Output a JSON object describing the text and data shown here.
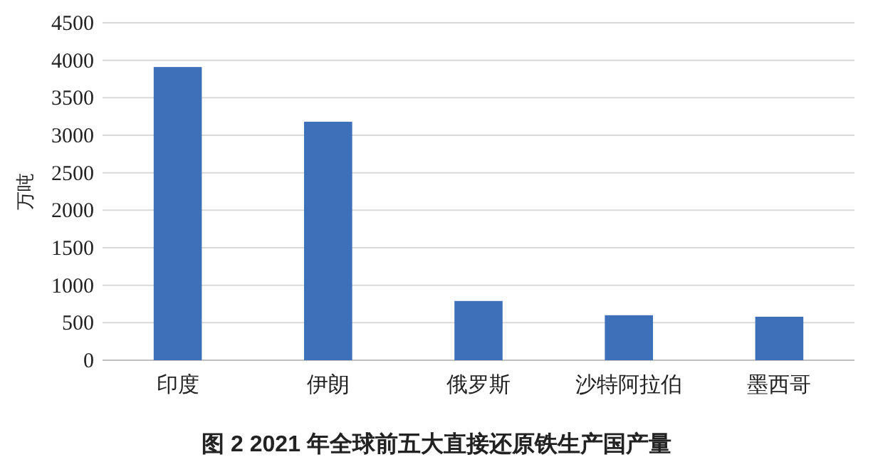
{
  "chart_data": {
    "type": "bar",
    "title": "图 2  2021 年全球前五大直接还原铁生产国产量",
    "ylabel": "万吨",
    "categories": [
      "印度",
      "伊朗",
      "俄罗斯",
      "沙特阿拉伯",
      "墨西哥"
    ],
    "values": [
      3910,
      3180,
      790,
      600,
      580
    ],
    "color": "#3d70b8",
    "ylim": [
      0,
      4500
    ],
    "yticks": [
      0,
      500,
      1000,
      1500,
      2000,
      2500,
      3000,
      3500,
      4000,
      4500
    ],
    "grid": "y"
  }
}
